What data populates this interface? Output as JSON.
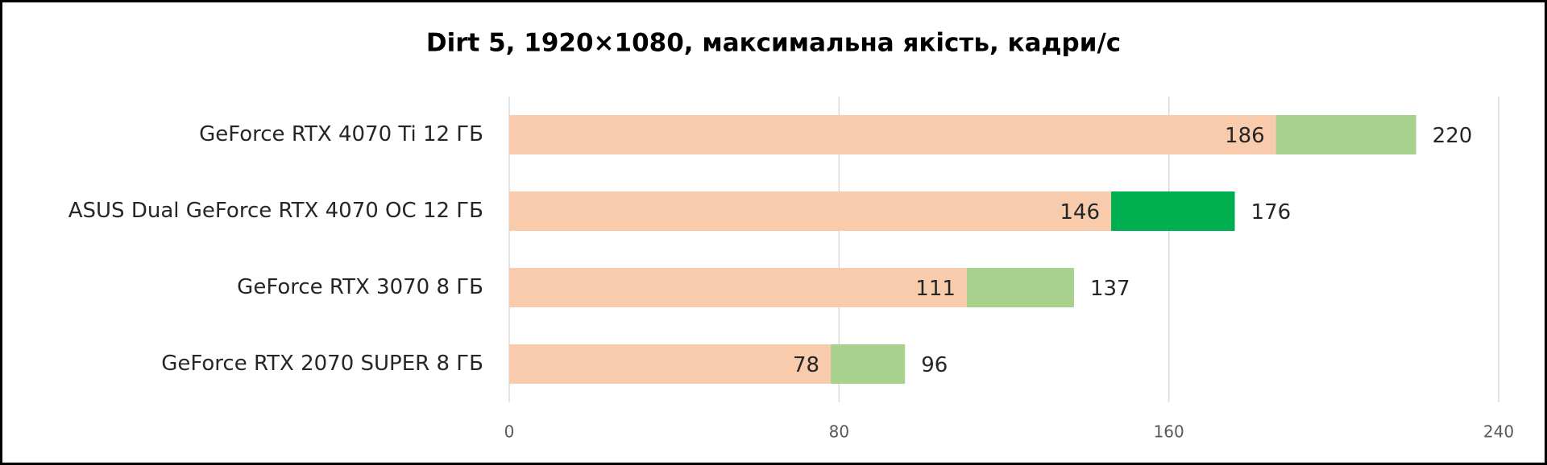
{
  "chart_data": {
    "type": "overlay-bar",
    "title": "Dirt 5, 1920×1080, максимальна  якість,  кадри/с",
    "categories": [
      "GeForce RTX 4070  Ti 12 ГБ",
      "ASUS Dual GeForce RTX 4070  OC 12 ГБ",
      "GeForce RTX 3070  8 ГБ",
      "GeForce RTX 2070  SUPER 8 ГБ"
    ],
    "series": [
      {
        "colors": [
          "#a9d18e",
          "#00b050",
          "#a9d18e",
          "#a9d18e"
        ],
        "values": [
          220,
          176,
          137,
          96
        ]
      },
      {
        "colors": [
          "#f8cbad",
          "#f8cbad",
          "#f8cbad",
          "#f8cbad"
        ],
        "values": [
          186,
          146,
          111,
          78
        ]
      }
    ],
    "xlim": [
      0,
      240
    ],
    "xticks": [
      0,
      80,
      160,
      240
    ],
    "grid": true
  }
}
